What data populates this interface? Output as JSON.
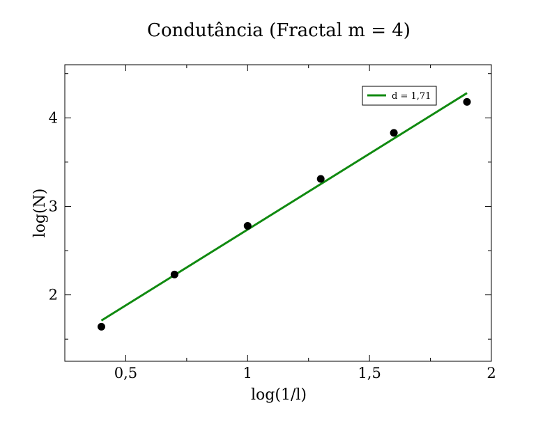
{
  "chart_data": {
    "type": "scatter",
    "title": "Condutância (Fractal m = 4)",
    "xlabel": "log(1/l)",
    "ylabel": "log(N)",
    "xlim": [
      0.25,
      2.0
    ],
    "ylim": [
      1.25,
      4.6
    ],
    "x_ticks": [
      {
        "value": 0.5,
        "label": "0,5"
      },
      {
        "value": 1.0,
        "label": "1"
      },
      {
        "value": 1.5,
        "label": "1,5"
      },
      {
        "value": 2.0,
        "label": "2"
      }
    ],
    "x_minor_ticks": [
      0.75,
      1.25,
      1.75
    ],
    "y_ticks": [
      {
        "value": 2,
        "label": "2"
      },
      {
        "value": 3,
        "label": "3"
      },
      {
        "value": 4,
        "label": "4"
      }
    ],
    "y_minor_ticks": [
      1.5,
      2.5,
      3.5,
      4.5
    ],
    "grid": false,
    "legend_position": "top-right",
    "series": [
      {
        "kind": "points",
        "color": "#000000",
        "x": [
          0.4,
          0.7,
          1.0,
          1.3,
          1.6,
          1.9
        ],
        "y": [
          1.64,
          2.23,
          2.78,
          3.31,
          3.83,
          4.18
        ]
      },
      {
        "kind": "fit-line",
        "name": "d = 1,71",
        "color": "#108a10",
        "x": [
          0.4,
          1.9
        ],
        "y": [
          1.71,
          4.28
        ]
      }
    ]
  }
}
